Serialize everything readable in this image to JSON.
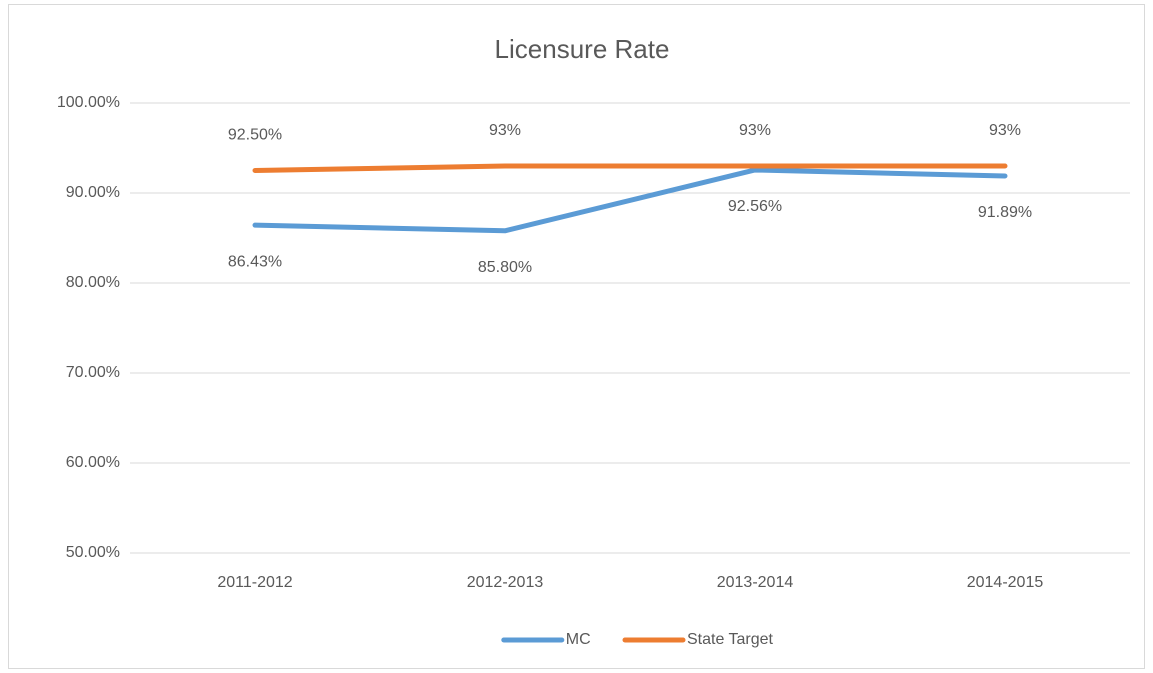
{
  "chart_data": {
    "type": "line",
    "title": "Licensure Rate",
    "categories": [
      "2011-2012",
      "2012-2013",
      "2013-2014",
      "2014-2015"
    ],
    "series": [
      {
        "name": "MC",
        "color": "#5b9bd5",
        "values": [
          86.43,
          85.8,
          92.56,
          91.89
        ],
        "value_labels": [
          "86.43%",
          "85.80%",
          "92.56%",
          "91.89%"
        ],
        "label_position": "below"
      },
      {
        "name": "State Target",
        "color": "#ed7d31",
        "values": [
          92.5,
          93,
          93,
          93
        ],
        "value_labels": [
          "92.50%",
          "93%",
          "93%",
          "93%"
        ],
        "label_position": "above"
      }
    ],
    "ylim": [
      50,
      100
    ],
    "yticks": [
      {
        "value": 50,
        "label": "50.00%"
      },
      {
        "value": 60,
        "label": "60.00%"
      },
      {
        "value": 70,
        "label": "70.00%"
      },
      {
        "value": 80,
        "label": "80.00%"
      },
      {
        "value": 90,
        "label": "90.00%"
      },
      {
        "value": 100,
        "label": "100.00%"
      }
    ],
    "grid": true,
    "legend": "bottom"
  }
}
